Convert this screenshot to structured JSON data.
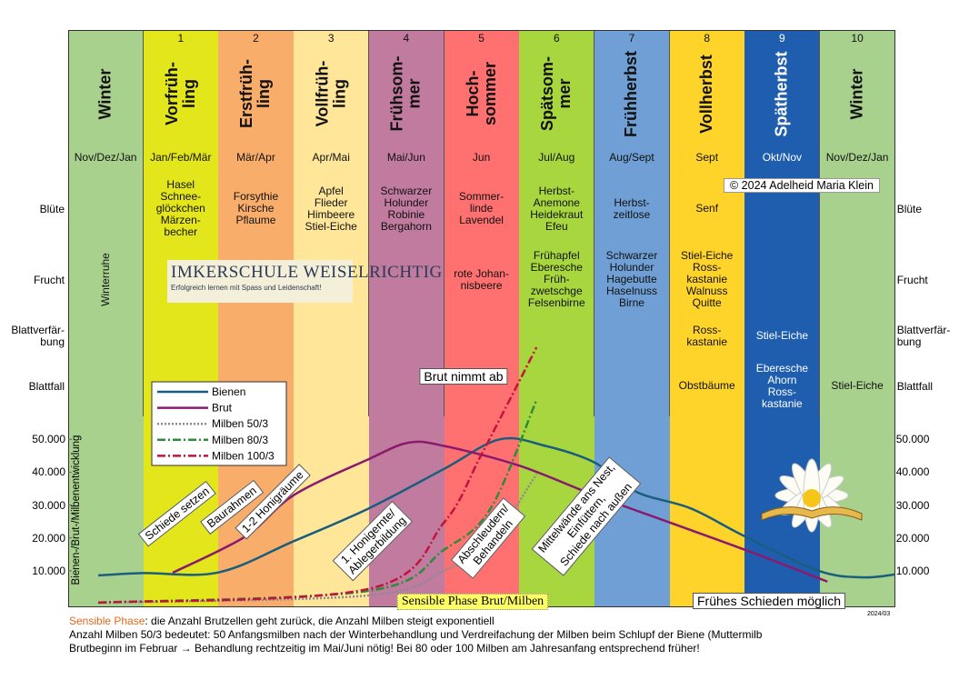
{
  "columns": [
    {
      "number": null,
      "name": "Winter",
      "months": "Nov/Dez/Jan",
      "bluete": null,
      "frucht": "Winterruhe",
      "blattverfaerbung": null,
      "blattfall": null,
      "color": "#a9d18e",
      "text_color": "#111111"
    },
    {
      "number": 1,
      "name": "Vorfrüh-\nling",
      "months": "Jan/Feb/Mär",
      "bluete": "Hasel\nSchnee-\nglöckchen\nMärzen-\nbecher",
      "frucht": null,
      "blattverfaerbung": null,
      "blattfall": null,
      "color": "#e3e61a",
      "text_color": "#111111"
    },
    {
      "number": 2,
      "name": "Erstfrüh-\nling",
      "months": "Mär/Apr",
      "bluete": "Forsythie\nKirsche\nPflaume",
      "frucht": null,
      "blattverfaerbung": null,
      "blattfall": null,
      "color": "#f9ad6a",
      "text_color": "#111111"
    },
    {
      "number": 3,
      "name": "Vollfrüh-\nling",
      "months": "Apr/Mai",
      "bluete": "Apfel\nFlieder\nHimbeere\nStiel-Eiche",
      "frucht": null,
      "blattverfaerbung": null,
      "blattfall": null,
      "color": "#ffe699",
      "text_color": "#111111"
    },
    {
      "number": 4,
      "name": "Frühsom-\nmer",
      "months": "Mai/Jun",
      "bluete": "Schwarzer\nHolunder\nRobinie\nBergahorn",
      "frucht": null,
      "blattverfaerbung": null,
      "blattfall": null,
      "color": "#c07b9f",
      "text_color": "#111111"
    },
    {
      "number": 5,
      "name": "Hoch-\nsommer",
      "months": "Jun",
      "bluete": "Sommer-\nlinde\nLavendel",
      "frucht": "rote Johan-\nnisbeere",
      "blattverfaerbung": null,
      "blattfall": null,
      "color": "#ff7070",
      "text_color": "#111111"
    },
    {
      "number": 6,
      "name": "Spätsom-\nmer",
      "months": "Jul/Aug",
      "bluete": "Herbst-\nAnemone\nHeidekraut\nEfeu",
      "frucht": "Frühapfel\nEberesche\nFrüh-\nzwetschge\nFelsenbirne",
      "blattverfaerbung": null,
      "blattfall": null,
      "color": "#a8d63e",
      "text_color": "#111111"
    },
    {
      "number": 7,
      "name": "Frühherbst",
      "months": "Aug/Sept",
      "bluete": "Herbst-\nzeitlose",
      "frucht": "Schwarzer\nHolunder\nHagebutte\nHaselnuss\nBirne",
      "blattverfaerbung": null,
      "blattfall": null,
      "color": "#6f9fd4",
      "text_color": "#111111"
    },
    {
      "number": 8,
      "name": "Vollherbst",
      "months": "Sept",
      "bluete": "Senf",
      "frucht": "Stiel-Eiche\nRoss-\nkastanie\nWalnuss\nQuitte",
      "blattverfaerbung": "Ross-\nkastanie",
      "blattfall": "Obstbäume",
      "color": "#ffd42a",
      "text_color": "#111111"
    },
    {
      "number": 9,
      "name": "Spätherbst",
      "months": "Okt/Nov",
      "bluete": null,
      "frucht": null,
      "blattverfaerbung": "Stiel-Eiche",
      "blattfall": "Eberesche\nAhorn\nRoss-\nkastanie",
      "color": "#1f5eae",
      "text_color": "#ffffff"
    },
    {
      "number": 10,
      "name": "Winter",
      "months": "Nov/Dez/Jan",
      "bluete": null,
      "frucht": null,
      "blattverfaerbung": null,
      "blattfall": "Stiel-Eiche",
      "color": "#a9d18e",
      "text_color": "#111111"
    }
  ],
  "row_labels": {
    "bluete": "Blüte",
    "frucht": "Frucht",
    "blattverfaerbung": "Blattverfär-\nbung",
    "blattfall": "Blattfall"
  },
  "copyright": "© 2024 Adelheid Maria Klein",
  "logo": {
    "title": "IMKERSCHULE WEISELRICHTIG",
    "subtitle": "Erfolgreich lernen mit Spass und Leidenschaft!"
  },
  "chart_data": {
    "type": "line",
    "y_label": "Bienen-/Brut-/Milbenentwicklung",
    "xlim": [
      0,
      11
    ],
    "ylim": [
      0,
      57000
    ],
    "yticks": [
      {
        "value": 10000,
        "label": "10.000"
      },
      {
        "value": 20000,
        "label": "20.000"
      },
      {
        "value": 30000,
        "label": "30.000"
      },
      {
        "value": 40000,
        "label": "40.000"
      },
      {
        "value": 50000,
        "label": "50.000"
      }
    ],
    "legend": "upper left",
    "series": [
      {
        "name": "Bienen",
        "color": "#1a5e7e",
        "dash": "solid",
        "x": [
          0.4,
          1,
          2,
          3,
          4,
          5,
          5.74,
          6.35,
          7,
          7.56,
          8.28,
          9,
          9.98,
          10.58,
          11
        ],
        "values": [
          8600,
          9300,
          9500,
          19000,
          29000,
          41000,
          50000,
          48000,
          43000,
          34000,
          29000,
          20500,
          10000,
          8000,
          8900
        ]
      },
      {
        "name": "Brut",
        "color": "#8a1a6e",
        "dash": "solid",
        "x": [
          1.39,
          2.36,
          3,
          4,
          4.53,
          5,
          6,
          7,
          8,
          9,
          10.1
        ],
        "values": [
          9400,
          20500,
          33000,
          44000,
          49000,
          48000,
          42000,
          33000,
          24700,
          16400,
          6700
        ]
      },
      {
        "name": "Milben 50/3",
        "color": "#8c8c8c",
        "dash": "dotted",
        "x": [
          0.4,
          4,
          5,
          5.62,
          6.23
        ],
        "values": [
          300,
          2500,
          10000,
          19000,
          39400
        ]
      },
      {
        "name": "Milben 80/3",
        "color": "#2e8b3a",
        "dash": "dashdot",
        "x": [
          0.4,
          4,
          5,
          5.62,
          6.23
        ],
        "values": [
          300,
          3900,
          16400,
          29000,
          62000
        ]
      },
      {
        "name": "Milben 100/3",
        "color": "#c0143c",
        "dash": "dashdot",
        "x": [
          0.4,
          4,
          5,
          5.5,
          6.23
        ],
        "values": [
          300,
          4500,
          24700,
          45500,
          78000
        ]
      }
    ],
    "annotations": [
      "Schiede setzen",
      "Baurahmen",
      "1-2 Honigräume",
      "1. Honigernte/\nAblegerbildung",
      "Abschleudern/\nBehandeln",
      "Mittelwände ans Nest,\nEinfüttern,\nSchiede nach außen",
      "Brut nimmt ab",
      "Sensible Phase Brut/Milben",
      "Frühes Schieden möglich"
    ],
    "version": "2024/03"
  },
  "footer": {
    "highlight": "Sensible Phase",
    "line1": ": die Anzahl Brutzellen geht zurück, die Anzahl Milben steigt exponentiell",
    "line2": "Anzahl Milben 50/3 bedeutet: 50 Anfangsmilben nach der Winterbehandlung und Verdreifachung der Milben beim Schlupf der Biene (Muttermilb",
    "line3": "Brutbeginn im Februar → Behandlung rechtzeitig im Mai/Juni nötig! Bei 80 oder 100 Milben am Jahresanfang entsprechend früher!"
  }
}
